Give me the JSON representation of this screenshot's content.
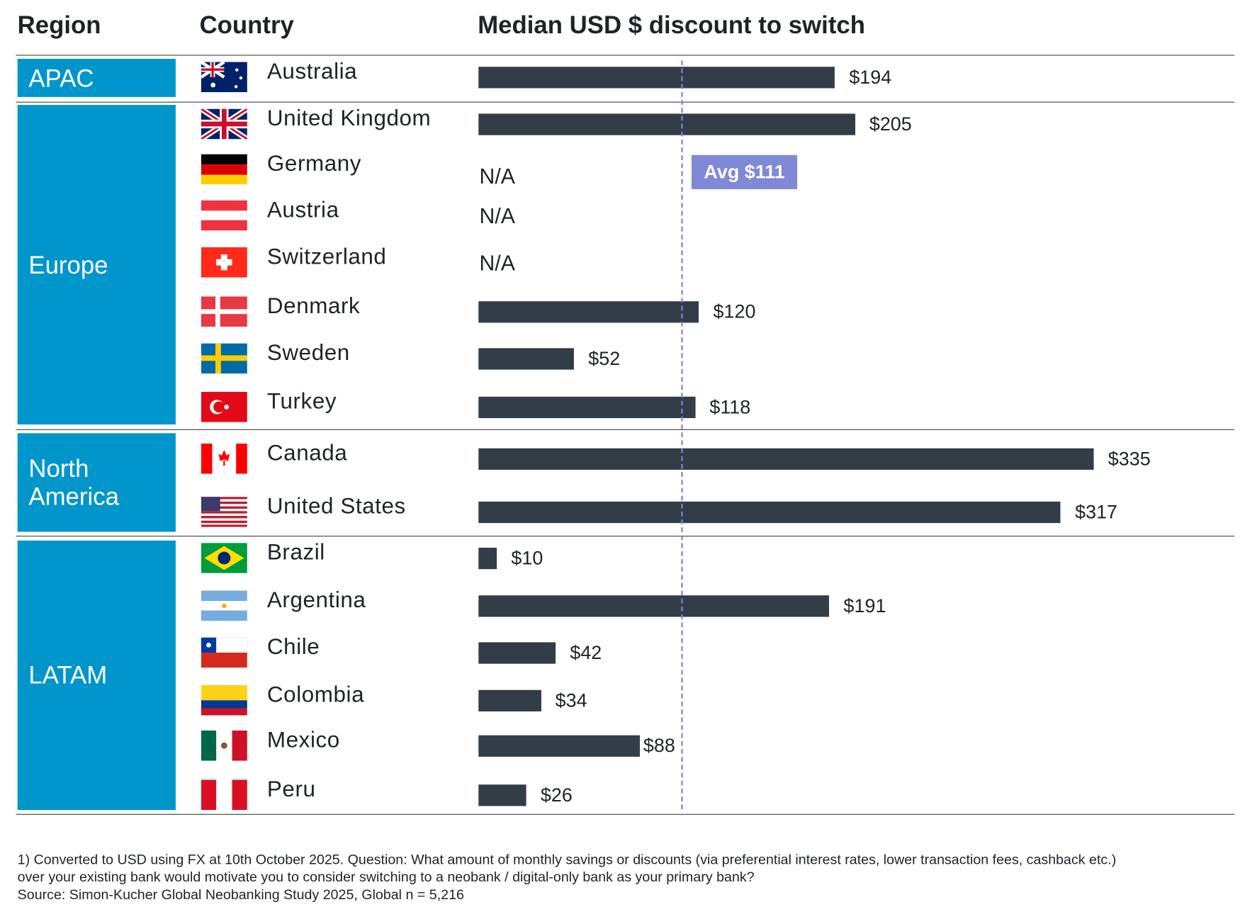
{
  "headers": {
    "region": "Region",
    "country": "Country",
    "metric": "Median USD $ discount to switch"
  },
  "chart_data": {
    "type": "bar",
    "orientation": "horizontal",
    "title": "Median USD $ discount to switch",
    "value_prefix": "$",
    "reference_line": {
      "label": "Avg $111",
      "value": 111
    },
    "xlim": [
      0,
      335
    ],
    "bar_color": "#333d47",
    "regions": [
      {
        "name": "APAC",
        "color": "#0096cc",
        "countries": [
          {
            "name": "Australia",
            "value": 194,
            "label": "$194"
          }
        ]
      },
      {
        "name": "Europe",
        "color": "#0096cc",
        "countries": [
          {
            "name": "United Kingdom",
            "value": 205,
            "label": "$205"
          },
          {
            "name": "Germany",
            "value": null,
            "label": "N/A"
          },
          {
            "name": "Austria",
            "value": null,
            "label": "N/A"
          },
          {
            "name": "Switzerland",
            "value": null,
            "label": "N/A"
          },
          {
            "name": "Denmark",
            "value": 120,
            "label": "$120"
          },
          {
            "name": "Sweden",
            "value": 52,
            "label": "$52"
          },
          {
            "name": "Turkey",
            "value": 118,
            "label": "$118"
          }
        ]
      },
      {
        "name": "North America",
        "color": "#0096cc",
        "countries": [
          {
            "name": "Canada",
            "value": 335,
            "label": "$335"
          },
          {
            "name": "United States",
            "value": 317,
            "label": "$317"
          }
        ]
      },
      {
        "name": "LATAM",
        "color": "#0096cc",
        "countries": [
          {
            "name": "Brazil",
            "value": 10,
            "label": "$10"
          },
          {
            "name": "Argentina",
            "value": 191,
            "label": "$191"
          },
          {
            "name": "Chile",
            "value": 42,
            "label": "$42"
          },
          {
            "name": "Colombia",
            "value": 34,
            "label": "$34"
          },
          {
            "name": "Mexico",
            "value": 88,
            "label": "$88"
          },
          {
            "name": "Peru",
            "value": 26,
            "label": "$26"
          }
        ]
      }
    ]
  },
  "footnote": {
    "line1": "1) Converted to USD using FX at 10th October 2025. Question: What amount of monthly savings or discounts (via preferential interest rates, lower transaction fees, cashback etc.)",
    "line2": "over your existing bank would motivate you to consider switching to a neobank / digital-only bank as your primary bank?",
    "source": "Source: Simon-Kucher Global Neobanking Study 2025, Global n = 5,216"
  }
}
